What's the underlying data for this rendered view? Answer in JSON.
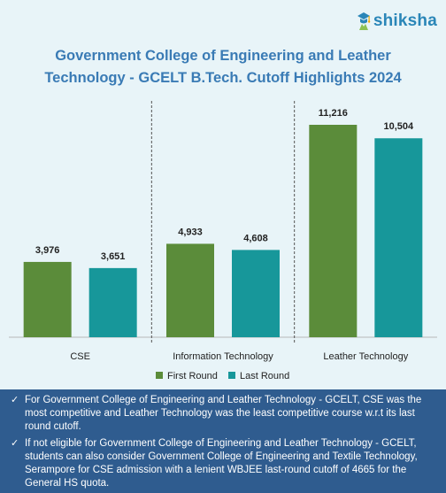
{
  "brand": {
    "name": "shiksha"
  },
  "chart_data": {
    "type": "bar",
    "title": "Government College of Engineering and Leather Technology - GCELT B.Tech. Cutoff Highlights 2024",
    "categories": [
      "CSE",
      "Information Technology",
      "Leather Technology"
    ],
    "series": [
      {
        "name": "First Round",
        "values": [
          3976,
          4933,
          11216
        ],
        "labels": [
          "3,976",
          "4,933",
          "11,216"
        ],
        "color": "#5b8c3a"
      },
      {
        "name": "Last Round",
        "values": [
          3651,
          4608,
          10504
        ],
        "labels": [
          "3,651",
          "4,608",
          "10,504"
        ],
        "color": "#17979a"
      }
    ],
    "ylim": [
      0,
      12000
    ],
    "grid": false,
    "legend": "bottom-center"
  },
  "notes": [
    "For Government College of Engineering and Leather Technology - GCELT, CSE was the most competitive and Leather Technology was the least competitive course w.r.t its last round cutoff.",
    "If not eligible for Government College of Engineering and Leather Technology - GCELT, students can also consider Government College of Engineering and Textile Technology, Serampore for CSE admission with a lenient WBJEE last-round cutoff of 4665 for the General HS quota."
  ]
}
